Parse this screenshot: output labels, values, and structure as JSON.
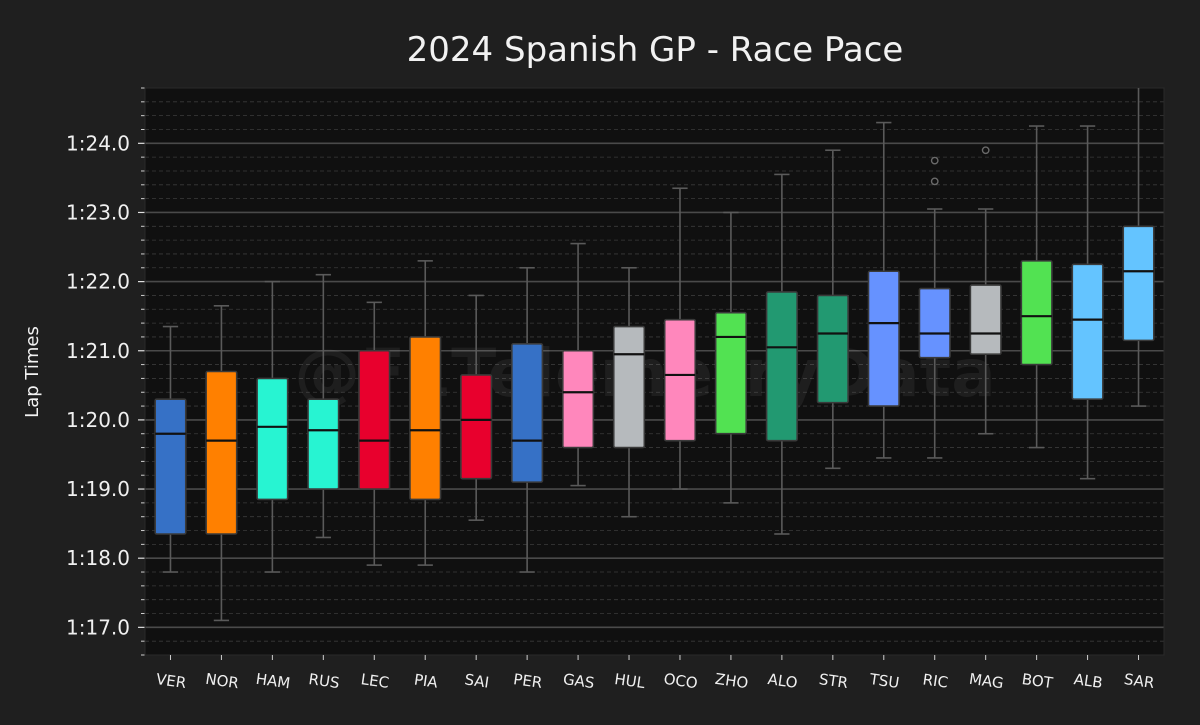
{
  "chart_data": {
    "type": "box",
    "title": "2024 Spanish GP - Race Pace",
    "ylabel": "Lap Times",
    "xlabel": "",
    "watermark": "@F1TelemetryData",
    "ylim_seconds": [
      76.6,
      84.8
    ],
    "yticks_seconds": [
      77,
      78,
      79,
      80,
      81,
      82,
      83,
      84
    ],
    "ytick_labels": [
      "1:17.0",
      "1:18.0",
      "1:19.0",
      "1:20.0",
      "1:21.0",
      "1:22.0",
      "1:23.0",
      "1:24.0"
    ],
    "grid": true,
    "drivers": [
      {
        "label": "VER",
        "color": "#3671C6",
        "whisker_low": 77.8,
        "q1": 78.35,
        "median": 79.8,
        "q3": 80.3,
        "whisker_high": 81.35,
        "outliers": []
      },
      {
        "label": "NOR",
        "color": "#FF8000",
        "whisker_low": 77.1,
        "q1": 78.35,
        "median": 79.7,
        "q3": 80.7,
        "whisker_high": 81.65,
        "outliers": []
      },
      {
        "label": "HAM",
        "color": "#27F4D2",
        "whisker_low": 77.8,
        "q1": 78.85,
        "median": 79.9,
        "q3": 80.6,
        "whisker_high": 82.0,
        "outliers": []
      },
      {
        "label": "RUS",
        "color": "#27F4D2",
        "whisker_low": 78.3,
        "q1": 79.0,
        "median": 79.85,
        "q3": 80.3,
        "whisker_high": 82.1,
        "outliers": []
      },
      {
        "label": "LEC",
        "color": "#E8002D",
        "whisker_low": 77.9,
        "q1": 79.0,
        "median": 79.7,
        "q3": 81.0,
        "whisker_high": 81.7,
        "outliers": []
      },
      {
        "label": "PIA",
        "color": "#FF8000",
        "whisker_low": 77.9,
        "q1": 78.85,
        "median": 79.85,
        "q3": 81.2,
        "whisker_high": 82.3,
        "outliers": []
      },
      {
        "label": "SAI",
        "color": "#E8002D",
        "whisker_low": 78.55,
        "q1": 79.15,
        "median": 80.0,
        "q3": 80.65,
        "whisker_high": 81.8,
        "outliers": []
      },
      {
        "label": "PER",
        "color": "#3671C6",
        "whisker_low": 77.8,
        "q1": 79.1,
        "median": 79.7,
        "q3": 81.1,
        "whisker_high": 82.2,
        "outliers": []
      },
      {
        "label": "GAS",
        "color": "#FF87BC",
        "whisker_low": 79.05,
        "q1": 79.6,
        "median": 80.4,
        "q3": 81.0,
        "whisker_high": 82.55,
        "outliers": []
      },
      {
        "label": "HUL",
        "color": "#B6BABD",
        "whisker_low": 78.6,
        "q1": 79.6,
        "median": 80.95,
        "q3": 81.35,
        "whisker_high": 82.2,
        "outliers": []
      },
      {
        "label": "OCO",
        "color": "#FF87BC",
        "whisker_low": 79.0,
        "q1": 79.7,
        "median": 80.65,
        "q3": 81.45,
        "whisker_high": 83.35,
        "outliers": []
      },
      {
        "label": "ZHO",
        "color": "#52E252",
        "whisker_low": 78.8,
        "q1": 79.8,
        "median": 81.2,
        "q3": 81.55,
        "whisker_high": 83.0,
        "outliers": []
      },
      {
        "label": "ALO",
        "color": "#229971",
        "whisker_low": 78.35,
        "q1": 79.7,
        "median": 81.05,
        "q3": 81.85,
        "whisker_high": 83.55,
        "outliers": []
      },
      {
        "label": "STR",
        "color": "#229971",
        "whisker_low": 79.3,
        "q1": 80.25,
        "median": 81.25,
        "q3": 81.8,
        "whisker_high": 83.9,
        "outliers": []
      },
      {
        "label": "TSU",
        "color": "#6692FF",
        "whisker_low": 79.45,
        "q1": 80.2,
        "median": 81.4,
        "q3": 82.15,
        "whisker_high": 84.3,
        "outliers": []
      },
      {
        "label": "RIC",
        "color": "#6692FF",
        "whisker_low": 79.45,
        "q1": 80.9,
        "median": 81.25,
        "q3": 81.9,
        "whisker_high": 83.05,
        "outliers": [
          83.45,
          83.75
        ]
      },
      {
        "label": "MAG",
        "color": "#B6BABD",
        "whisker_low": 79.8,
        "q1": 80.95,
        "median": 81.25,
        "q3": 81.95,
        "whisker_high": 83.05,
        "outliers": [
          83.9
        ]
      },
      {
        "label": "BOT",
        "color": "#52E252",
        "whisker_low": 79.6,
        "q1": 80.8,
        "median": 81.5,
        "q3": 82.3,
        "whisker_high": 84.25,
        "outliers": []
      },
      {
        "label": "ALB",
        "color": "#64C4FF",
        "whisker_low": 79.15,
        "q1": 80.3,
        "median": 81.45,
        "q3": 82.25,
        "whisker_high": 84.25,
        "outliers": []
      },
      {
        "label": "SAR",
        "color": "#64C4FF",
        "whisker_low": 80.2,
        "q1": 81.15,
        "median": 82.15,
        "q3": 82.8,
        "whisker_high": 84.8,
        "outliers": []
      }
    ]
  }
}
